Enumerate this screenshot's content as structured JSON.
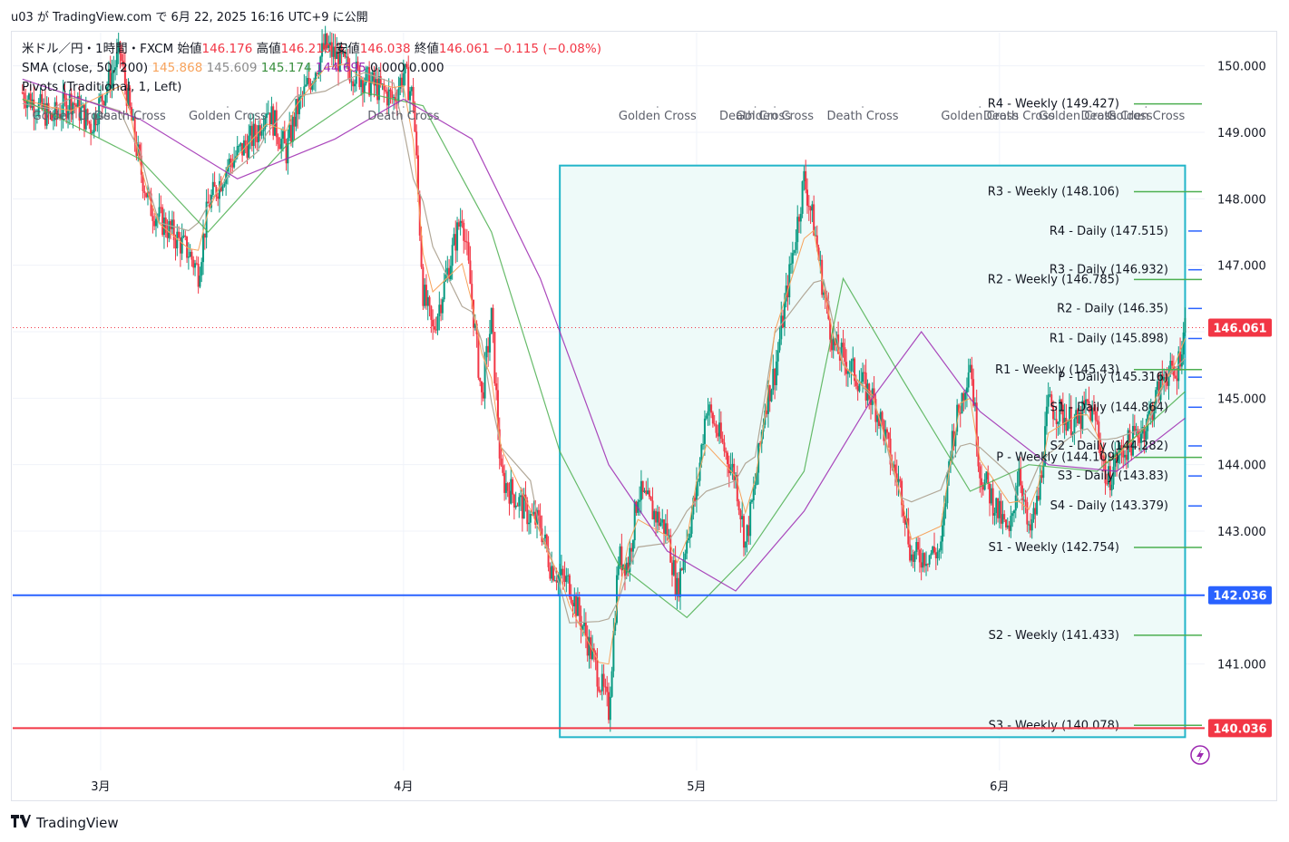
{
  "header": {
    "text": "u03 が TradingView.com で 6月 22, 2025 16:16 UTC+9 に公開"
  },
  "legend": {
    "symbol": "米ドル／円・1時間・FXCM",
    "open_label": "始値",
    "open": "146.176",
    "high_label": "高値",
    "high": "146.210",
    "low_label": "安値",
    "low": "146.038",
    "close_label": "終値",
    "close": "146.061",
    "change": "−0.115 (−0.08%)",
    "sma_label": "SMA (close, 50, 200)",
    "sma_values": [
      "145.868",
      "145.609",
      "145.174",
      "144.695",
      "0.000",
      "0.000"
    ],
    "pivots_label": "Pivots (Traditional, 1, Left)"
  },
  "footer": {
    "brand": "TradingView",
    "logo": "tv-logo-icon"
  },
  "colors": {
    "up": "#089981",
    "down": "#f23645",
    "box_border": "#22b5c9",
    "box_fill": "#eefaf9",
    "line_blue": "#2962ff",
    "line_red": "#f23645",
    "pivot_weekly": "#4caf50",
    "pivot_daily": "#2962ff",
    "sma_fast": "#f7a35c",
    "sma_slow": "#b2a898",
    "sma_green": "#4caf50",
    "sma_purple": "#9c27b0"
  },
  "chart_data": {
    "type": "candlestick",
    "title": "米ドル／円・1時間・FXCM",
    "ylim": [
      139.4,
      150.5
    ],
    "yticks": [
      141.0,
      142.0,
      143.0,
      144.0,
      145.0,
      146.0,
      147.0,
      148.0,
      149.0,
      150.0
    ],
    "ytick_labels": [
      "141.000",
      "142.000",
      "143.000",
      "144.000",
      "145.000",
      "146.000",
      "147.000",
      "148.000",
      "149.000",
      "150.000"
    ],
    "x_tick_labels": [
      {
        "label": "3月",
        "x": "2025-03-01"
      },
      {
        "label": "4月",
        "x": "2025-04-01"
      },
      {
        "label": "5月",
        "x": "2025-05-01"
      },
      {
        "label": "6月",
        "x": "2025-06-01"
      }
    ],
    "xlim": [
      "2025-02-20",
      "2025-06-22"
    ],
    "price_path": [
      {
        "x": "2025-02-21",
        "y": 149.6
      },
      {
        "x": "2025-02-24",
        "y": 149.2
      },
      {
        "x": "2025-02-26",
        "y": 149.5
      },
      {
        "x": "2025-02-28",
        "y": 149.1
      },
      {
        "x": "2025-03-03",
        "y": 150.2
      },
      {
        "x": "2025-03-04",
        "y": 149.3
      },
      {
        "x": "2025-03-05",
        "y": 148.5
      },
      {
        "x": "2025-03-06",
        "y": 147.9
      },
      {
        "x": "2025-03-07",
        "y": 147.7
      },
      {
        "x": "2025-03-10",
        "y": 147.2
      },
      {
        "x": "2025-03-11",
        "y": 146.9
      },
      {
        "x": "2025-03-12",
        "y": 147.9
      },
      {
        "x": "2025-03-14",
        "y": 148.5
      },
      {
        "x": "2025-03-17",
        "y": 149.0
      },
      {
        "x": "2025-03-18",
        "y": 149.4
      },
      {
        "x": "2025-03-20",
        "y": 148.7
      },
      {
        "x": "2025-03-21",
        "y": 149.3
      },
      {
        "x": "2025-03-24",
        "y": 150.3
      },
      {
        "x": "2025-03-26",
        "y": 150.0
      },
      {
        "x": "2025-03-28",
        "y": 149.8
      },
      {
        "x": "2025-03-31",
        "y": 149.5
      },
      {
        "x": "2025-04-01",
        "y": 149.9
      },
      {
        "x": "2025-04-02",
        "y": 149.5
      },
      {
        "x": "2025-04-03",
        "y": 146.6
      },
      {
        "x": "2025-04-04",
        "y": 146.0
      },
      {
        "x": "2025-04-07",
        "y": 147.8
      },
      {
        "x": "2025-04-08",
        "y": 146.5
      },
      {
        "x": "2025-04-09",
        "y": 145.0
      },
      {
        "x": "2025-04-10",
        "y": 146.2
      },
      {
        "x": "2025-04-11",
        "y": 143.8
      },
      {
        "x": "2025-04-14",
        "y": 143.2
      },
      {
        "x": "2025-04-15",
        "y": 143.1
      },
      {
        "x": "2025-04-16",
        "y": 142.5
      },
      {
        "x": "2025-04-17",
        "y": 142.3
      },
      {
        "x": "2025-04-18",
        "y": 142.2
      },
      {
        "x": "2025-04-21",
        "y": 140.8
      },
      {
        "x": "2025-04-22",
        "y": 140.3
      },
      {
        "x": "2025-04-23",
        "y": 142.6
      },
      {
        "x": "2025-04-24",
        "y": 142.5
      },
      {
        "x": "2025-04-25",
        "y": 143.6
      },
      {
        "x": "2025-04-28",
        "y": 143.0
      },
      {
        "x": "2025-04-29",
        "y": 142.1
      },
      {
        "x": "2025-04-30",
        "y": 142.9
      },
      {
        "x": "2025-05-01",
        "y": 143.6
      },
      {
        "x": "2025-05-02",
        "y": 144.9
      },
      {
        "x": "2025-05-05",
        "y": 143.8
      },
      {
        "x": "2025-05-06",
        "y": 142.8
      },
      {
        "x": "2025-05-07",
        "y": 143.7
      },
      {
        "x": "2025-05-08",
        "y": 144.9
      },
      {
        "x": "2025-05-09",
        "y": 145.4
      },
      {
        "x": "2025-05-12",
        "y": 148.3
      },
      {
        "x": "2025-05-13",
        "y": 147.6
      },
      {
        "x": "2025-05-14",
        "y": 146.6
      },
      {
        "x": "2025-05-15",
        "y": 145.8
      },
      {
        "x": "2025-05-16",
        "y": 145.6
      },
      {
        "x": "2025-05-19",
        "y": 145.0
      },
      {
        "x": "2025-05-20",
        "y": 144.6
      },
      {
        "x": "2025-05-21",
        "y": 144.0
      },
      {
        "x": "2025-05-22",
        "y": 143.6
      },
      {
        "x": "2025-05-23",
        "y": 142.6
      },
      {
        "x": "2025-05-26",
        "y": 142.7
      },
      {
        "x": "2025-05-27",
        "y": 144.3
      },
      {
        "x": "2025-05-28",
        "y": 144.9
      },
      {
        "x": "2025-05-29",
        "y": 145.6
      },
      {
        "x": "2025-05-30",
        "y": 143.9
      },
      {
        "x": "2025-06-02",
        "y": 142.9
      },
      {
        "x": "2025-06-03",
        "y": 144.0
      },
      {
        "x": "2025-06-04",
        "y": 142.9
      },
      {
        "x": "2025-06-05",
        "y": 143.5
      },
      {
        "x": "2025-06-06",
        "y": 144.9
      },
      {
        "x": "2025-06-09",
        "y": 144.6
      },
      {
        "x": "2025-06-10",
        "y": 144.9
      },
      {
        "x": "2025-06-11",
        "y": 144.6
      },
      {
        "x": "2025-06-12",
        "y": 143.7
      },
      {
        "x": "2025-06-13",
        "y": 144.1
      },
      {
        "x": "2025-06-16",
        "y": 144.6
      },
      {
        "x": "2025-06-17",
        "y": 145.0
      },
      {
        "x": "2025-06-18",
        "y": 145.4
      },
      {
        "x": "2025-06-19",
        "y": 145.3
      },
      {
        "x": "2025-06-20",
        "y": 146.1
      }
    ],
    "sma_lines": [
      {
        "name": "SMA 50",
        "color": "#4caf50",
        "points": [
          {
            "x": "2025-02-21",
            "y": 149.5
          },
          {
            "x": "2025-03-05",
            "y": 148.6
          },
          {
            "x": "2025-03-12",
            "y": 147.5
          },
          {
            "x": "2025-03-20",
            "y": 148.8
          },
          {
            "x": "2025-03-28",
            "y": 149.6
          },
          {
            "x": "2025-04-03",
            "y": 149.4
          },
          {
            "x": "2025-04-10",
            "y": 147.5
          },
          {
            "x": "2025-04-17",
            "y": 144.2
          },
          {
            "x": "2025-04-23",
            "y": 142.5
          },
          {
            "x": "2025-04-30",
            "y": 141.7
          },
          {
            "x": "2025-05-06",
            "y": 142.6
          },
          {
            "x": "2025-05-12",
            "y": 143.9
          },
          {
            "x": "2025-05-16",
            "y": 146.8
          },
          {
            "x": "2025-05-22",
            "y": 145.3
          },
          {
            "x": "2025-05-29",
            "y": 143.6
          },
          {
            "x": "2025-06-04",
            "y": 144.0
          },
          {
            "x": "2025-06-11",
            "y": 143.9
          },
          {
            "x": "2025-06-20",
            "y": 145.1
          }
        ]
      },
      {
        "name": "SMA 200",
        "color": "#9c27b0",
        "points": [
          {
            "x": "2025-02-21",
            "y": 149.8
          },
          {
            "x": "2025-03-05",
            "y": 149.2
          },
          {
            "x": "2025-03-15",
            "y": 148.3
          },
          {
            "x": "2025-03-25",
            "y": 148.9
          },
          {
            "x": "2025-04-01",
            "y": 149.5
          },
          {
            "x": "2025-04-08",
            "y": 148.9
          },
          {
            "x": "2025-04-15",
            "y": 146.8
          },
          {
            "x": "2025-04-22",
            "y": 144.0
          },
          {
            "x": "2025-04-28",
            "y": 142.7
          },
          {
            "x": "2025-05-05",
            "y": 142.1
          },
          {
            "x": "2025-05-12",
            "y": 143.3
          },
          {
            "x": "2025-05-19",
            "y": 145.0
          },
          {
            "x": "2025-05-24",
            "y": 146.0
          },
          {
            "x": "2025-05-30",
            "y": 144.8
          },
          {
            "x": "2025-06-06",
            "y": 144.0
          },
          {
            "x": "2025-06-13",
            "y": 143.9
          },
          {
            "x": "2025-06-20",
            "y": 144.7
          }
        ]
      }
    ],
    "rectangle": {
      "x0": "2025-04-17",
      "x1": "2025-06-20",
      "y0": 139.9,
      "y1": 148.5
    },
    "horizontal_lines": [
      {
        "y": 142.036,
        "label": "142.036",
        "color": "#2962ff"
      },
      {
        "y": 140.036,
        "label": "140.036",
        "color": "#f23645"
      }
    ],
    "last_price": {
      "y": 146.061,
      "label": "146.061"
    },
    "pivots": [
      {
        "label": "R4 - Weekly (149.427)",
        "y": 149.427,
        "kind": "weekly"
      },
      {
        "label": "R3 - Weekly (148.106)",
        "y": 148.106,
        "kind": "weekly"
      },
      {
        "label": "R4 - Daily (147.515)",
        "y": 147.515,
        "kind": "daily"
      },
      {
        "label": "R3 - Daily (146.932)",
        "y": 146.932,
        "kind": "daily"
      },
      {
        "label": "R2 - Weekly (146.785)",
        "y": 146.785,
        "kind": "weekly"
      },
      {
        "label": "R2 - Daily (146.35)",
        "y": 146.35,
        "kind": "daily"
      },
      {
        "label": "R1 - Daily (145.898)",
        "y": 145.898,
        "kind": "daily"
      },
      {
        "label": "R1 - Weekly (145.43)",
        "y": 145.43,
        "kind": "weekly"
      },
      {
        "label": "P - Daily (145.316)",
        "y": 145.316,
        "kind": "daily"
      },
      {
        "label": "S1 - Daily (144.864)",
        "y": 144.864,
        "kind": "daily"
      },
      {
        "label": "S2 - Daily (144.282)",
        "y": 144.282,
        "kind": "daily"
      },
      {
        "label": "P - Weekly (144.109)",
        "y": 144.109,
        "kind": "weekly"
      },
      {
        "label": "S3 - Daily (143.83)",
        "y": 143.83,
        "kind": "daily"
      },
      {
        "label": "S4 - Daily (143.379)",
        "y": 143.379,
        "kind": "daily"
      },
      {
        "label": "S1 - Weekly (142.754)",
        "y": 142.754,
        "kind": "weekly"
      },
      {
        "label": "S2 - Weekly (141.433)",
        "y": 141.433,
        "kind": "weekly"
      },
      {
        "label": "S3 - Weekly (140.078)",
        "y": 140.078,
        "kind": "weekly"
      }
    ],
    "cross_labels": [
      {
        "label": "Golden Cross",
        "x": "2025-02-26"
      },
      {
        "label": "Death Cross",
        "x": "2025-03-04"
      },
      {
        "label": "Golden Cross",
        "x": "2025-03-14"
      },
      {
        "label": "Death Cross",
        "x": "2025-04-01"
      },
      {
        "label": "Golden Cross",
        "x": "2025-04-27"
      },
      {
        "label": "Death Cross",
        "x": "2025-05-07"
      },
      {
        "label": "Golden Cross",
        "x": "2025-05-09"
      },
      {
        "label": "Death Cross",
        "x": "2025-05-18"
      },
      {
        "label": "Golden Cross",
        "x": "2025-05-30"
      },
      {
        "label": "Death Cross",
        "x": "2025-06-03"
      },
      {
        "label": "Golden Cross",
        "x": "2025-06-09"
      },
      {
        "label": "Death Cross",
        "x": "2025-06-13"
      },
      {
        "label": "Golden Cross",
        "x": "2025-06-16"
      }
    ]
  }
}
